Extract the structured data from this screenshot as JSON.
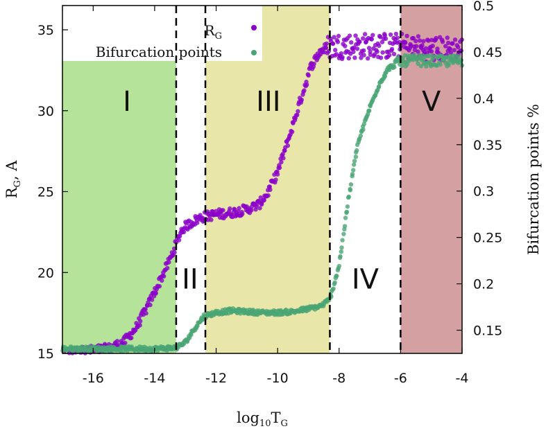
{
  "chart_data": {
    "type": "scatter",
    "xlabel": "log10TG",
    "ylabel_left": "RG, A",
    "ylabel_right": "Bifurcation points %",
    "xlim": [
      -17,
      -4
    ],
    "ylim_left": [
      15,
      36.5
    ],
    "ylim_right": [
      0.125,
      0.5
    ],
    "x_ticks": [
      -16,
      -14,
      -12,
      -10,
      -8,
      -6,
      -4
    ],
    "y_left_ticks": [
      15,
      20,
      25,
      30,
      35
    ],
    "y_right_ticks": [
      0.15,
      0.2,
      0.25,
      0.3,
      0.35,
      0.4,
      0.45,
      0.5
    ],
    "boundaries": [
      -13.3,
      -12.35,
      -8.3,
      -6.0
    ],
    "regions": [
      {
        "label": "I",
        "x_range": [
          -17,
          -13.3
        ],
        "color": "#b5e39a",
        "label_x": -14.9,
        "label_y": 30.0
      },
      {
        "label": "II",
        "x_range": [
          -13.3,
          -12.35
        ],
        "color": "#ffffff",
        "label_x": -12.85,
        "label_y": 19.0
      },
      {
        "label": "III",
        "x_range": [
          -12.35,
          -8.3
        ],
        "color": "#e8e6a9",
        "label_x": -10.3,
        "label_y": 30.0
      },
      {
        "label": "IV",
        "x_range": [
          -8.3,
          -6.0
        ],
        "color": "#ffffff",
        "label_x": -7.15,
        "label_y": 19.0
      },
      {
        "label": "V",
        "x_range": [
          -6.0,
          -4.0
        ],
        "color": "#d4a0a1",
        "label_x": -5.0,
        "label_y": 30.0
      }
    ],
    "legend": {
      "position": "top-left",
      "entries": [
        {
          "label": "R",
          "label_sub": "G",
          "color": "#8b00c9"
        },
        {
          "label": "Bifurcation points",
          "color": "#4aa574"
        }
      ]
    },
    "series": [
      {
        "name": "RG",
        "axis": "left",
        "color": "#8b00c9",
        "points": [
          [
            -17.0,
            15.0
          ],
          [
            -16.5,
            15.1
          ],
          [
            -16.0,
            15.2
          ],
          [
            -15.5,
            15.3
          ],
          [
            -15.0,
            15.7
          ],
          [
            -14.6,
            16.6
          ],
          [
            -14.2,
            18.0
          ],
          [
            -13.8,
            19.6
          ],
          [
            -13.5,
            20.8
          ],
          [
            -13.3,
            21.8
          ],
          [
            -13.1,
            22.7
          ],
          [
            -12.8,
            23.1
          ],
          [
            -12.5,
            23.4
          ],
          [
            -12.0,
            23.6
          ],
          [
            -11.5,
            23.7
          ],
          [
            -11.0,
            23.9
          ],
          [
            -10.6,
            24.2
          ],
          [
            -10.3,
            25.0
          ],
          [
            -10.0,
            26.2
          ],
          [
            -9.6,
            28.5
          ],
          [
            -9.2,
            31.0
          ],
          [
            -8.9,
            32.8
          ],
          [
            -8.6,
            33.7
          ],
          [
            -8.3,
            34.0
          ],
          [
            -7.5,
            34.0
          ],
          [
            -6.5,
            34.0
          ],
          [
            -6.0,
            34.0
          ],
          [
            -5.0,
            33.8
          ],
          [
            -4.0,
            33.8
          ]
        ]
      },
      {
        "name": "Bifurcation points",
        "axis": "right",
        "color": "#4aa574",
        "points": [
          [
            -17.0,
            0.13
          ],
          [
            -16.0,
            0.13
          ],
          [
            -15.0,
            0.13
          ],
          [
            -14.0,
            0.13
          ],
          [
            -13.3,
            0.131
          ],
          [
            -13.0,
            0.137
          ],
          [
            -12.7,
            0.152
          ],
          [
            -12.4,
            0.165
          ],
          [
            -12.0,
            0.169
          ],
          [
            -11.5,
            0.171
          ],
          [
            -11.0,
            0.17
          ],
          [
            -10.5,
            0.169
          ],
          [
            -10.0,
            0.169
          ],
          [
            -9.5,
            0.17
          ],
          [
            -9.0,
            0.173
          ],
          [
            -8.6,
            0.176
          ],
          [
            -8.3,
            0.183
          ],
          [
            -8.0,
            0.22
          ],
          [
            -7.7,
            0.29
          ],
          [
            -7.4,
            0.35
          ],
          [
            -7.0,
            0.39
          ],
          [
            -6.7,
            0.415
          ],
          [
            -6.4,
            0.432
          ],
          [
            -6.0,
            0.44
          ],
          [
            -5.5,
            0.441
          ],
          [
            -5.0,
            0.44
          ],
          [
            -4.5,
            0.44
          ],
          [
            -4.0,
            0.441
          ]
        ]
      }
    ]
  }
}
